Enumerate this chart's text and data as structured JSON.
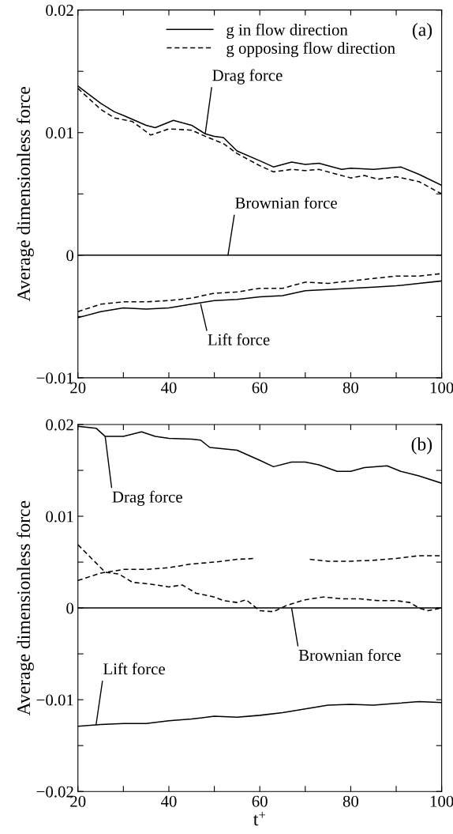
{
  "chart_data": [
    {
      "type": "line",
      "title": "(a)",
      "ylabel": "Average dimensionless force",
      "xlim": [
        20,
        100
      ],
      "ylim": [
        -0.01,
        0.02
      ],
      "xticks": [
        20,
        {
          "value": 30,
          "label": null
        },
        40,
        {
          "value": 50,
          "label": null
        },
        60,
        {
          "value": 70,
          "label": null
        },
        80,
        {
          "value": 90,
          "label": null
        },
        100
      ],
      "yticks": [
        {
          "value": -0.01,
          "label": "−0.01"
        },
        {
          "value": -0.005,
          "label": null
        },
        0,
        {
          "value": 0.005,
          "label": null
        },
        0.01,
        {
          "value": 0.015,
          "label": null
        },
        0.02
      ],
      "legend": "top right",
      "grid": false,
      "series": [
        {
          "name": "g in flow direction",
          "color": "#000000",
          "line_style": "solid",
          "x": [
            20,
            25,
            28,
            30,
            35,
            37,
            41,
            45,
            48,
            50,
            52,
            55,
            60,
            63,
            67,
            70,
            73,
            78,
            80,
            85,
            88,
            91,
            95,
            100
          ],
          "values": [
            0.0138,
            0.0124,
            0.0117,
            0.0114,
            0.0106,
            0.0104,
            0.011,
            0.0106,
            0.0099,
            0.0097,
            0.0096,
            0.0085,
            0.0077,
            0.0072,
            0.0076,
            0.0074,
            0.0075,
            0.007,
            0.0071,
            0.007,
            0.0071,
            0.0072,
            0.0066,
            0.0057
          ]
        },
        {
          "name": "g opposing flow direction",
          "color": "#000000",
          "line_style": "dashed",
          "x": [
            20,
            25,
            28,
            32,
            36,
            40,
            45,
            48,
            52,
            55,
            60,
            63,
            67,
            70,
            73,
            77,
            80,
            83,
            86,
            90,
            95,
            100
          ],
          "values": [
            0.0136,
            0.0119,
            0.0112,
            0.0109,
            0.0098,
            0.0103,
            0.0102,
            0.0097,
            0.0091,
            0.0083,
            0.0073,
            0.0068,
            0.007,
            0.0069,
            0.007,
            0.0066,
            0.0063,
            0.0065,
            0.0062,
            0.0064,
            0.006,
            0.005
          ]
        },
        {
          "color": "#000000",
          "line_style": "solid",
          "x": [
            20,
            100
          ],
          "values": [
            0,
            0
          ]
        },
        {
          "color": "#000000",
          "line_style": "solid",
          "x": [
            20,
            25,
            30,
            35,
            40,
            45,
            50,
            55,
            60,
            65,
            70,
            75,
            80,
            85,
            90,
            95,
            100
          ],
          "values": [
            -0.0051,
            -0.0046,
            -0.0043,
            -0.0044,
            -0.0043,
            -0.004,
            -0.0037,
            -0.0036,
            -0.0034,
            -0.0033,
            -0.0029,
            -0.0028,
            -0.0027,
            -0.0026,
            -0.0025,
            -0.0023,
            -0.0021
          ]
        },
        {
          "color": "#000000",
          "line_style": "dashed",
          "x": [
            20,
            25,
            30,
            35,
            40,
            45,
            50,
            55,
            60,
            65,
            70,
            75,
            80,
            85,
            90,
            95,
            100
          ],
          "values": [
            -0.0046,
            -0.004,
            -0.0038,
            -0.0038,
            -0.0037,
            -0.0035,
            -0.0031,
            -0.003,
            -0.0027,
            -0.0027,
            -0.0022,
            -0.0023,
            -0.0021,
            -0.0019,
            -0.0017,
            -0.0017,
            -0.0015
          ]
        }
      ],
      "annotations": [
        {
          "text": "Drag force",
          "x": 48,
          "y": 0.0099
        },
        {
          "text": "Brownian force",
          "x": 53,
          "y": 0
        },
        {
          "text": "Lift force",
          "x": 47,
          "y": -0.004
        }
      ]
    },
    {
      "type": "line",
      "title": "(b)",
      "xlabel": "t$^{+}$",
      "ylabel": "Average dimensionless force",
      "xlim": [
        20,
        100
      ],
      "ylim": [
        -0.02,
        0.02
      ],
      "xticks": [
        20,
        {
          "value": 30,
          "label": null
        },
        40,
        {
          "value": 50,
          "label": null
        },
        60,
        {
          "value": 70,
          "label": null
        },
        80,
        {
          "value": 90,
          "label": null
        },
        100
      ],
      "yticks": [
        {
          "value": -0.02,
          "label": "−0.02"
        },
        {
          "value": -0.015,
          "label": null
        },
        {
          "value": -0.01,
          "label": "−0.01"
        },
        {
          "value": -0.005,
          "label": null
        },
        0,
        {
          "value": 0.005,
          "label": null
        },
        0.01,
        {
          "value": 0.015,
          "label": null
        },
        0.02
      ],
      "grid": false,
      "series": [
        {
          "color": "#000000",
          "line_style": "solid",
          "x": [
            20,
            24,
            26,
            30,
            34,
            37,
            40,
            45,
            47,
            49,
            55,
            60,
            63,
            67,
            70,
            73,
            77,
            80,
            83,
            88,
            91,
            95,
            100
          ],
          "values": [
            0.0198,
            0.0196,
            0.0187,
            0.0187,
            0.0192,
            0.0187,
            0.0185,
            0.0184,
            0.0183,
            0.0175,
            0.0172,
            0.0161,
            0.0154,
            0.0159,
            0.0159,
            0.0156,
            0.0149,
            0.0149,
            0.0153,
            0.0155,
            0.0149,
            0.0144,
            0.0136
          ]
        },
        {
          "color": "#000000",
          "line_style": "dashed",
          "x": [
            20,
            23,
            26,
            29,
            32,
            36,
            40,
            43,
            46,
            50,
            52,
            55,
            57,
            60,
            63,
            66,
            68,
            70,
            74,
            78,
            82,
            86,
            90,
            93,
            95,
            97,
            100
          ],
          "values": [
            0.0069,
            0.0054,
            0.0039,
            0.0037,
            0.0028,
            0.0026,
            0.0023,
            0.0025,
            0.0016,
            0.0012,
            0.0008,
            0.0006,
            0.0009,
            -0.0003,
            -0.0004,
            0.0003,
            0.0006,
            0.0009,
            0.0012,
            0.001,
            0.001,
            0.0008,
            0.0008,
            0.0006,
            0.0,
            -0.0003,
            0.0
          ]
        },
        {
          "color": "#000000",
          "line_style": "solid",
          "x": [
            20,
            100
          ],
          "values": [
            0,
            0
          ]
        },
        {
          "color": "#000000",
          "line_style": "dashed",
          "x": [
            20,
            25,
            30,
            35,
            40,
            45,
            50,
            55,
            59,
            65,
            71,
            75,
            80,
            85,
            90,
            95,
            100
          ],
          "values": [
            0.003,
            0.0038,
            0.0042,
            0.0042,
            0.0044,
            0.0048,
            0.005,
            0.0053,
            0.0054,
            null,
            0.0053,
            0.0051,
            0.0051,
            0.0052,
            0.0054,
            0.0057,
            0.0057
          ]
        },
        {
          "color": "#000000",
          "line_style": "solid",
          "x": [
            20,
            25,
            30,
            35,
            40,
            45,
            50,
            55,
            60,
            65,
            70,
            75,
            80,
            85,
            90,
            95,
            100
          ],
          "values": [
            -0.0129,
            -0.0127,
            -0.0126,
            -0.0126,
            -0.0123,
            -0.0121,
            -0.0118,
            -0.0119,
            -0.0117,
            -0.0114,
            -0.011,
            -0.0106,
            -0.0105,
            -0.0106,
            -0.0104,
            -0.0102,
            -0.0103
          ]
        }
      ],
      "annotations": [
        {
          "text": "Drag force",
          "x": 26,
          "y": 0.0187
        },
        {
          "text": "Lift force",
          "x": 24,
          "y": -0.0127
        },
        {
          "text": "Brownian force",
          "x": 67,
          "y": 0
        }
      ]
    }
  ]
}
